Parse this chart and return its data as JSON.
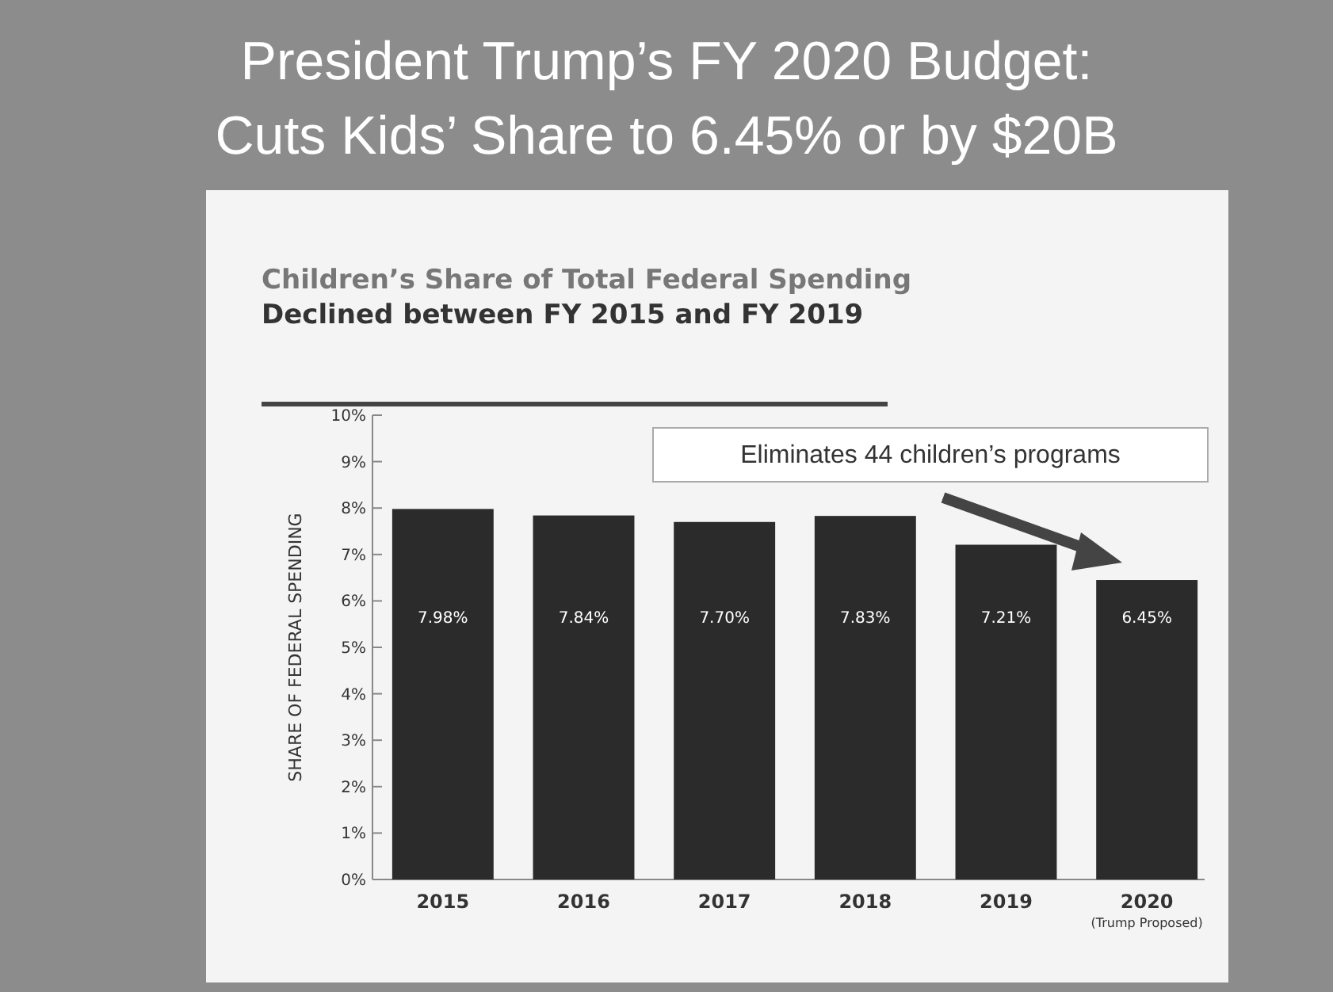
{
  "chart_data": {
    "type": "bar",
    "title": "President Trump’s FY 2020 Budget:\nCuts Kids’ Share to 6.45% or by $20B",
    "subtitle": "Children’s Share of Total Federal Spending\nDeclined between FY 2015 and FY 2019",
    "ylabel": "SHARE OF FEDERAL SPENDING",
    "categories": [
      "2015",
      "2016",
      "2017",
      "2018",
      "2019",
      "2020\n(Trump Proposed)"
    ],
    "values": [
      7.98,
      7.84,
      7.7,
      7.83,
      7.21,
      6.45
    ],
    "value_labels": [
      "7.98%",
      "7.84%",
      "7.70%",
      "7.83%",
      "7.21%",
      "6.45%"
    ],
    "color": "#2b2b2b",
    "ylim": [
      0,
      10
    ],
    "yticks": [
      {
        "value": 0,
        "label": "0%"
      },
      {
        "value": 1,
        "label": "1%"
      },
      {
        "value": 2,
        "label": "2%"
      },
      {
        "value": 3,
        "label": "3%"
      },
      {
        "value": 4,
        "label": "4%"
      },
      {
        "value": 5,
        "label": "5%"
      },
      {
        "value": 6,
        "label": "6%"
      },
      {
        "value": 7,
        "label": "7%"
      },
      {
        "value": 8,
        "label": "8%"
      },
      {
        "value": 9,
        "label": "9%"
      },
      {
        "value": 10,
        "label": "10%"
      }
    ],
    "annotations": [
      "Eliminates 44 children’s programs"
    ]
  }
}
